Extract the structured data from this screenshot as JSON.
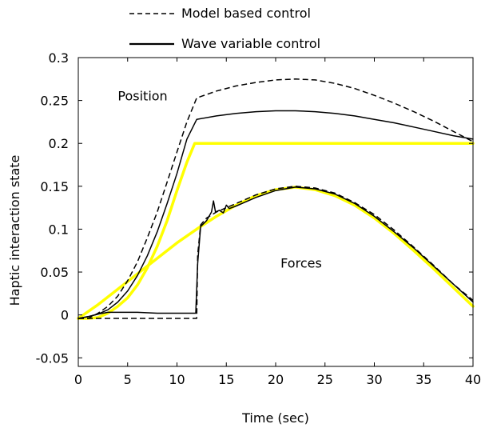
{
  "chart_data": {
    "type": "line",
    "title": "",
    "xlabel": "Time (sec)",
    "ylabel": "Haptic interaction state",
    "xlim": [
      0,
      40
    ],
    "ylim": [
      -0.06,
      0.3
    ],
    "xticks": [
      0,
      5,
      10,
      15,
      20,
      25,
      30,
      35,
      40
    ],
    "yticks": [
      -0.05,
      0,
      0.05,
      0.1,
      0.15,
      0.2,
      0.25,
      0.3
    ],
    "xtick_labels": [
      "0",
      "5",
      "10",
      "15",
      "20",
      "25",
      "30",
      "35",
      "40"
    ],
    "ytick_labels": [
      "-0.05",
      "0",
      "0.05",
      "0.1",
      "0.15",
      "0.2",
      "0.25",
      "0.3"
    ],
    "grid": false,
    "legend_position": "top-center-outside",
    "legend": [
      {
        "label": "Model based control",
        "style": "dashed",
        "color": "#000000"
      },
      {
        "label": "Wave variable control",
        "style": "solid",
        "color": "#000000"
      }
    ],
    "annotations": [
      {
        "text": "Position",
        "x": 4,
        "y": 0.25
      },
      {
        "text": "Forces",
        "x": 20.5,
        "y": 0.055
      }
    ],
    "series": [
      {
        "group": "reference",
        "style": "solid",
        "color": "#ffff00",
        "width": 3.5,
        "x": [
          0,
          1,
          2,
          3,
          4,
          5,
          6,
          7,
          8,
          9,
          10,
          11,
          11.8,
          13,
          20,
          30,
          40
        ],
        "y": [
          -0.004,
          -0.004,
          -0.003,
          0.002,
          0.01,
          0.02,
          0.035,
          0.055,
          0.08,
          0.11,
          0.145,
          0.178,
          0.2,
          0.2,
          0.2,
          0.2,
          0.2
        ]
      },
      {
        "group": "reference",
        "style": "solid",
        "color": "#ffff00",
        "width": 3.5,
        "x": [
          0,
          2,
          4,
          6,
          8,
          10,
          12,
          14,
          16,
          18,
          20,
          22,
          24,
          26,
          28,
          30,
          32,
          34,
          36,
          38,
          40
        ],
        "y": [
          -0.004,
          0.012,
          0.03,
          0.048,
          0.066,
          0.084,
          0.1,
          0.115,
          0.128,
          0.139,
          0.146,
          0.149,
          0.146,
          0.139,
          0.128,
          0.113,
          0.095,
          0.075,
          0.054,
          0.032,
          0.01
        ]
      },
      {
        "group": "model_based",
        "style": "dashed",
        "color": "#000000",
        "width": 1.5,
        "x": [
          0,
          1,
          2,
          3,
          4,
          5,
          6,
          7,
          8,
          9,
          10,
          11,
          12,
          14,
          16,
          18,
          20,
          22,
          24,
          26,
          28,
          30,
          32,
          34,
          36,
          38,
          40
        ],
        "y": [
          -0.004,
          -0.004,
          0.002,
          0.01,
          0.022,
          0.04,
          0.062,
          0.09,
          0.12,
          0.155,
          0.19,
          0.225,
          0.253,
          0.261,
          0.267,
          0.271,
          0.274,
          0.275,
          0.274,
          0.27,
          0.264,
          0.256,
          0.247,
          0.237,
          0.226,
          0.214,
          0.202
        ]
      },
      {
        "group": "wave_variable",
        "style": "solid",
        "color": "#000000",
        "width": 1.5,
        "x": [
          0,
          1,
          2,
          3,
          4,
          5,
          6,
          7,
          8,
          9,
          10,
          11,
          12,
          14,
          16,
          18,
          20,
          22,
          24,
          26,
          28,
          30,
          32,
          34,
          36,
          38,
          40
        ],
        "y": [
          -0.004,
          -0.002,
          0.001,
          0.006,
          0.015,
          0.028,
          0.046,
          0.069,
          0.097,
          0.13,
          0.165,
          0.205,
          0.228,
          0.232,
          0.235,
          0.237,
          0.238,
          0.238,
          0.237,
          0.235,
          0.232,
          0.228,
          0.224,
          0.219,
          0.214,
          0.209,
          0.205
        ]
      },
      {
        "group": "model_based",
        "style": "dashed",
        "color": "#000000",
        "width": 1.5,
        "x": [
          0,
          2,
          4,
          6,
          8,
          10,
          12,
          12.1,
          12.4,
          13,
          14,
          16,
          18,
          20,
          22,
          24,
          26,
          28,
          30,
          32,
          34,
          36,
          38,
          40
        ],
        "y": [
          -0.004,
          -0.004,
          -0.004,
          -0.004,
          -0.004,
          -0.004,
          -0.004,
          0.07,
          0.105,
          0.113,
          0.12,
          0.13,
          0.14,
          0.147,
          0.15,
          0.148,
          0.142,
          0.131,
          0.117,
          0.099,
          0.079,
          0.058,
          0.036,
          0.017
        ]
      },
      {
        "group": "wave_variable",
        "style": "solid",
        "color": "#000000",
        "width": 1.5,
        "x": [
          0,
          1,
          2,
          3,
          4,
          6,
          8,
          10,
          11.9,
          12.1,
          12.4,
          13,
          13.5,
          13.7,
          13.9,
          14.3,
          14.7,
          15,
          15.3,
          16,
          18,
          20,
          22,
          24,
          26,
          28,
          30,
          32,
          34,
          36,
          38,
          40
        ],
        "y": [
          -0.004,
          -0.002,
          0.001,
          0.003,
          0.003,
          0.003,
          0.002,
          0.002,
          0.002,
          0.06,
          0.103,
          0.11,
          0.12,
          0.133,
          0.12,
          0.122,
          0.119,
          0.128,
          0.124,
          0.127,
          0.137,
          0.145,
          0.149,
          0.147,
          0.141,
          0.13,
          0.115,
          0.097,
          0.078,
          0.057,
          0.036,
          0.015
        ]
      }
    ]
  }
}
